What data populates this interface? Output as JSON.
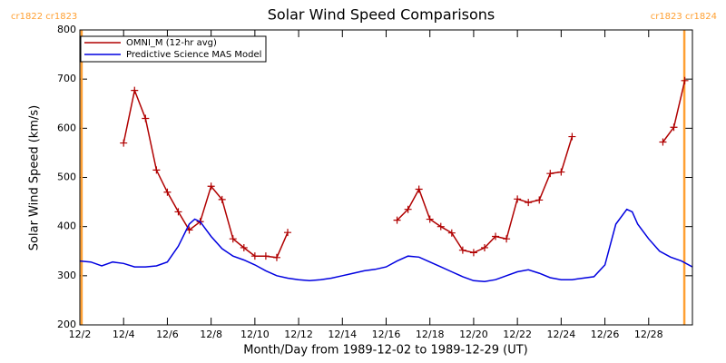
{
  "chart_data": {
    "type": "line",
    "title": "Solar Wind Speed Comparisons",
    "x_label": "Month/Day from 1989-12-02 to 1989-12-29 (UT)",
    "y_label": "Solar Wind Speed (km/s)",
    "xlim": [
      2,
      30
    ],
    "ylim": [
      200,
      800
    ],
    "xticks": [
      {
        "value": 2,
        "label": "12/2"
      },
      {
        "value": 4,
        "label": "12/4"
      },
      {
        "value": 6,
        "label": "12/6"
      },
      {
        "value": 8,
        "label": "12/8"
      },
      {
        "value": 10,
        "label": "12/10"
      },
      {
        "value": 12,
        "label": "12/12"
      },
      {
        "value": 14,
        "label": "12/14"
      },
      {
        "value": 16,
        "label": "12/16"
      },
      {
        "value": 18,
        "label": "12/18"
      },
      {
        "value": 20,
        "label": "12/20"
      },
      {
        "value": 22,
        "label": "12/22"
      },
      {
        "value": 24,
        "label": "12/24"
      },
      {
        "value": 26,
        "label": "12/26"
      },
      {
        "value": 28,
        "label": "12/28"
      }
    ],
    "yticks": [
      200,
      300,
      400,
      500,
      600,
      700,
      800
    ],
    "legend": "upper left",
    "markers": [
      {
        "x": 2.08,
        "label": "cr1822 cr1823",
        "color": "#ffa033"
      },
      {
        "x": 29.63,
        "label": "cr1823 cr1824",
        "color": "#ffa033"
      }
    ],
    "series": [
      {
        "name": "OMNI_M (12-hr avg)",
        "color": "#b00000",
        "marker": "+",
        "x": [
          4,
          4.5,
          5,
          5.5,
          6,
          6.5,
          7,
          7.5,
          8,
          8.5,
          9,
          9.5,
          10,
          10.5,
          11,
          11.5,
          14,
          16.5,
          17,
          17.5,
          18,
          18.5,
          19,
          19.5,
          20,
          20.5,
          21,
          21.5,
          22,
          22.5,
          23,
          23.5,
          24,
          24.5,
          27,
          28.65,
          29.15,
          29.65
        ],
        "values": [
          570,
          677,
          620,
          515,
          470,
          430,
          393,
          410,
          482,
          455,
          375,
          357,
          340,
          340,
          337,
          388,
          null,
          413,
          435,
          476,
          415,
          400,
          387,
          352,
          347,
          357,
          380,
          375,
          456,
          449,
          454,
          508,
          511,
          583,
          null,
          572,
          602,
          697
        ]
      },
      {
        "name": "Predictive Science MAS Model",
        "color": "#0000e0",
        "x": [
          2,
          2.5,
          3,
          3.5,
          4,
          4.5,
          5,
          5.5,
          6,
          6.5,
          7,
          7.25,
          7.5,
          8,
          8.5,
          9,
          9.5,
          10,
          10.5,
          11,
          11.5,
          12,
          12.5,
          13,
          13.5,
          14,
          14.5,
          15,
          15.5,
          16,
          16.5,
          17,
          17.5,
          18,
          18.5,
          19,
          19.5,
          20,
          20.5,
          21,
          21.5,
          22,
          22.5,
          23,
          23.5,
          24,
          24.5,
          25,
          25.5,
          26,
          26.5,
          27,
          27.25,
          27.5,
          28,
          28.5,
          29,
          29.5,
          30
        ],
        "values": [
          330,
          328,
          320,
          328,
          325,
          318,
          318,
          320,
          328,
          360,
          405,
          415,
          410,
          380,
          355,
          340,
          332,
          322,
          310,
          300,
          295,
          292,
          290,
          292,
          295,
          300,
          305,
          310,
          313,
          318,
          330,
          340,
          338,
          328,
          318,
          308,
          298,
          290,
          288,
          292,
          300,
          308,
          312,
          305,
          296,
          292,
          292,
          295,
          298,
          322,
          405,
          435,
          430,
          405,
          375,
          350,
          338,
          330,
          318
        ]
      }
    ]
  }
}
